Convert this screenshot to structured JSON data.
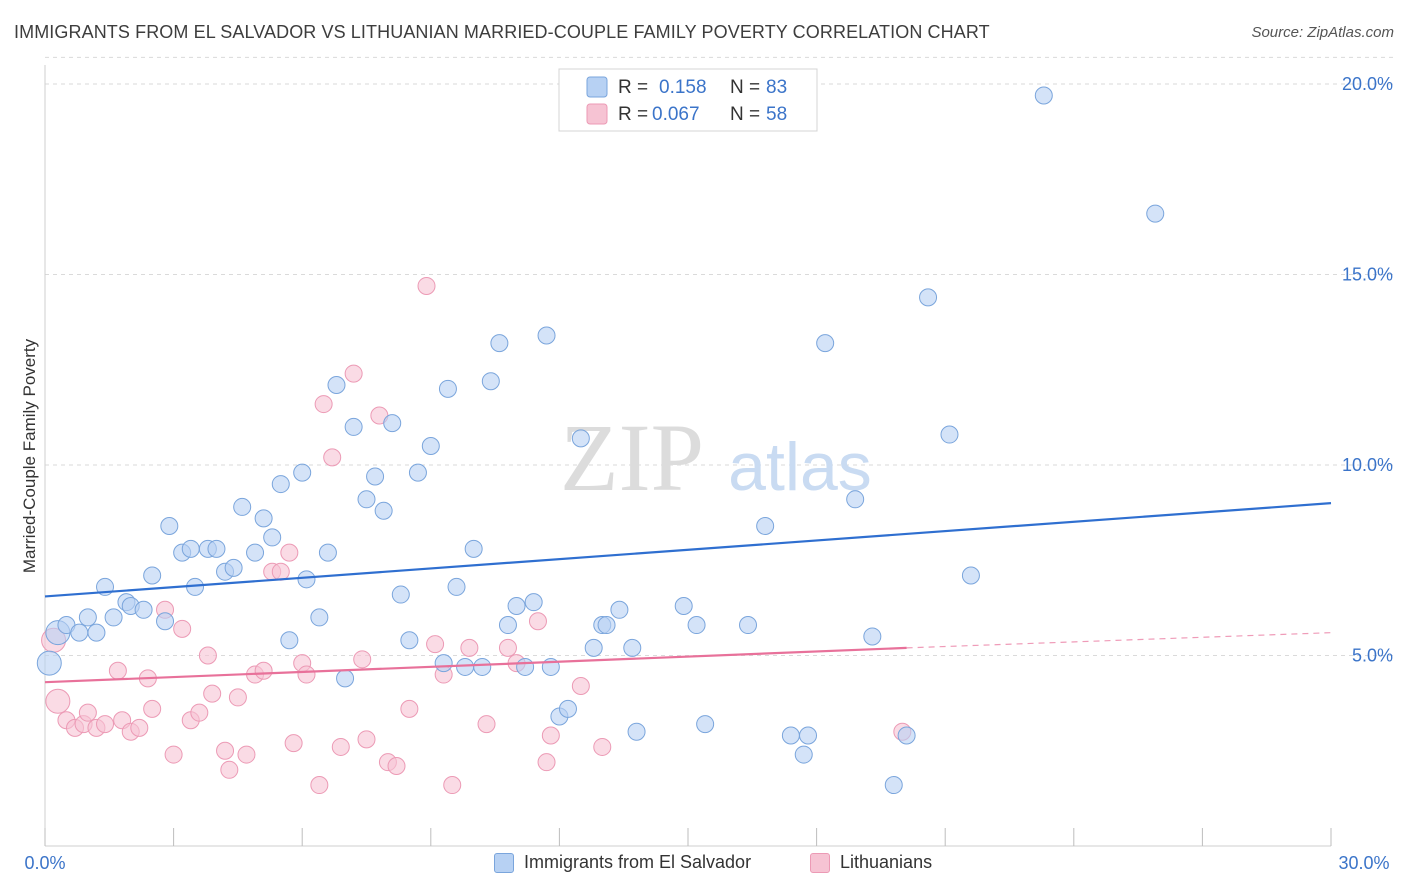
{
  "header": {
    "title": "IMMIGRANTS FROM EL SALVADOR VS LITHUANIAN MARRIED-COUPLE FAMILY POVERTY CORRELATION CHART",
    "source": "Source: ZipAtlas.com"
  },
  "watermark": {
    "zip": "ZIP",
    "atlas": "atlas"
  },
  "colors": {
    "blue_fill": "#b7d1f3",
    "blue_stroke": "#7aa5dc",
    "blue_line": "#2f6fd0",
    "pink_fill": "#f6c3d3",
    "pink_stroke": "#ec9ab5",
    "pink_line": "#e8719a",
    "grid": "#d9d9d9",
    "tick_text": "#3b74c9"
  },
  "legend_top": {
    "rows": [
      {
        "r_label": "R =",
        "r_value": "0.158",
        "n_label": "N =",
        "n_value": "83"
      },
      {
        "r_label": "R =",
        "r_value": "0.067",
        "n_label": "N =",
        "n_value": "58"
      }
    ]
  },
  "chart_data": {
    "type": "scatter",
    "title": "IMMIGRANTS FROM EL SALVADOR VS LITHUANIAN MARRIED-COUPLE FAMILY POVERTY CORRELATION CHART",
    "ylabel": "Married-Couple Family Poverty",
    "xlabel": "",
    "xlim": [
      0,
      30
    ],
    "ylim": [
      0,
      20.5
    ],
    "x_tick_labels": [
      "0.0%",
      "30.0%"
    ],
    "y_ticks": [
      5,
      10,
      15,
      20
    ],
    "y_tick_labels": [
      "5.0%",
      "10.0%",
      "15.0%",
      "20.0%"
    ],
    "grid": "horizontal dashed",
    "legend_placement": "top-center",
    "series": [
      {
        "name": "Immigrants from El Salvador",
        "color": "#b7d1f3",
        "trend": {
          "x": [
            0,
            30
          ],
          "y": [
            6.55,
            9.0
          ],
          "dashed_after": null
        },
        "points": [
          [
            0.1,
            4.8
          ],
          [
            0.3,
            5.6
          ],
          [
            0.5,
            5.8
          ],
          [
            0.8,
            5.6
          ],
          [
            1.0,
            6.0
          ],
          [
            1.2,
            5.6
          ],
          [
            1.4,
            6.8
          ],
          [
            1.6,
            6.0
          ],
          [
            1.9,
            6.4
          ],
          [
            2.0,
            6.3
          ],
          [
            2.3,
            6.2
          ],
          [
            2.5,
            7.1
          ],
          [
            2.8,
            5.9
          ],
          [
            2.9,
            8.4
          ],
          [
            3.2,
            7.7
          ],
          [
            3.4,
            7.8
          ],
          [
            3.5,
            6.8
          ],
          [
            3.8,
            7.8
          ],
          [
            4.0,
            7.8
          ],
          [
            4.2,
            7.2
          ],
          [
            4.4,
            7.3
          ],
          [
            4.6,
            8.9
          ],
          [
            4.9,
            7.7
          ],
          [
            5.1,
            8.6
          ],
          [
            5.3,
            8.1
          ],
          [
            5.5,
            9.5
          ],
          [
            5.7,
            5.4
          ],
          [
            6.0,
            9.8
          ],
          [
            6.1,
            7.0
          ],
          [
            6.4,
            6.0
          ],
          [
            6.6,
            7.7
          ],
          [
            7.0,
            4.4
          ],
          [
            6.8,
            12.1
          ],
          [
            7.2,
            11.0
          ],
          [
            7.5,
            9.1
          ],
          [
            7.7,
            9.7
          ],
          [
            7.9,
            8.8
          ],
          [
            8.1,
            11.1
          ],
          [
            8.3,
            6.6
          ],
          [
            8.5,
            5.4
          ],
          [
            8.7,
            9.8
          ],
          [
            9.0,
            10.5
          ],
          [
            9.3,
            4.8
          ],
          [
            9.4,
            12.0
          ],
          [
            9.6,
            6.8
          ],
          [
            9.8,
            4.7
          ],
          [
            10.0,
            7.8
          ],
          [
            10.2,
            4.7
          ],
          [
            10.4,
            12.2
          ],
          [
            10.6,
            13.2
          ],
          [
            10.8,
            5.8
          ],
          [
            11.0,
            6.3
          ],
          [
            11.2,
            4.7
          ],
          [
            11.4,
            6.4
          ],
          [
            11.7,
            13.4
          ],
          [
            11.8,
            4.7
          ],
          [
            12.0,
            3.4
          ],
          [
            12.2,
            3.6
          ],
          [
            12.5,
            10.7
          ],
          [
            12.8,
            5.2
          ],
          [
            13.0,
            5.8
          ],
          [
            13.1,
            5.8
          ],
          [
            13.4,
            6.2
          ],
          [
            13.7,
            5.2
          ],
          [
            13.8,
            3.0
          ],
          [
            14.9,
            6.3
          ],
          [
            15.2,
            5.8
          ],
          [
            15.4,
            3.2
          ],
          [
            16.4,
            5.8
          ],
          [
            16.8,
            8.4
          ],
          [
            17.4,
            2.9
          ],
          [
            17.7,
            2.4
          ],
          [
            17.8,
            2.9
          ],
          [
            18.2,
            13.2
          ],
          [
            18.9,
            9.1
          ],
          [
            19.3,
            5.5
          ],
          [
            19.8,
            1.6
          ],
          [
            20.1,
            2.9
          ],
          [
            20.6,
            14.4
          ],
          [
            21.1,
            10.8
          ],
          [
            21.6,
            7.1
          ],
          [
            23.3,
            19.7
          ],
          [
            25.9,
            16.6
          ]
        ]
      },
      {
        "name": "Lithuanians",
        "color": "#f6c3d3",
        "trend": {
          "x": [
            0,
            20.1
          ],
          "y": [
            4.3,
            5.2
          ],
          "dashed_after": [
            20.1,
            30,
            5.2,
            5.6
          ]
        },
        "points": [
          [
            0.2,
            5.4
          ],
          [
            0.3,
            3.8
          ],
          [
            0.5,
            3.3
          ],
          [
            0.7,
            3.1
          ],
          [
            0.9,
            3.2
          ],
          [
            1.0,
            3.5
          ],
          [
            1.2,
            3.1
          ],
          [
            1.4,
            3.2
          ],
          [
            1.7,
            4.6
          ],
          [
            1.8,
            3.3
          ],
          [
            2.0,
            3.0
          ],
          [
            2.2,
            3.1
          ],
          [
            2.4,
            4.4
          ],
          [
            2.5,
            3.6
          ],
          [
            2.8,
            6.2
          ],
          [
            3.0,
            2.4
          ],
          [
            3.2,
            5.7
          ],
          [
            3.4,
            3.3
          ],
          [
            3.6,
            3.5
          ],
          [
            3.8,
            5.0
          ],
          [
            3.9,
            4.0
          ],
          [
            4.2,
            2.5
          ],
          [
            4.3,
            2.0
          ],
          [
            4.5,
            3.9
          ],
          [
            4.7,
            2.4
          ],
          [
            4.9,
            4.5
          ],
          [
            5.1,
            4.6
          ],
          [
            5.3,
            7.2
          ],
          [
            5.5,
            7.2
          ],
          [
            5.7,
            7.7
          ],
          [
            5.8,
            2.7
          ],
          [
            6.0,
            4.8
          ],
          [
            6.1,
            4.5
          ],
          [
            6.4,
            1.6
          ],
          [
            6.5,
            11.6
          ],
          [
            6.7,
            10.2
          ],
          [
            6.9,
            2.6
          ],
          [
            7.2,
            12.4
          ],
          [
            7.4,
            4.9
          ],
          [
            7.5,
            2.8
          ],
          [
            7.8,
            11.3
          ],
          [
            8.0,
            2.2
          ],
          [
            8.2,
            2.1
          ],
          [
            8.5,
            3.6
          ],
          [
            8.9,
            14.7
          ],
          [
            9.1,
            5.3
          ],
          [
            9.3,
            4.5
          ],
          [
            9.5,
            1.6
          ],
          [
            9.9,
            5.2
          ],
          [
            10.3,
            3.2
          ],
          [
            10.8,
            5.2
          ],
          [
            11.0,
            4.8
          ],
          [
            11.5,
            5.9
          ],
          [
            11.7,
            2.2
          ],
          [
            11.8,
            2.9
          ],
          [
            12.5,
            4.2
          ],
          [
            13.0,
            2.6
          ],
          [
            20.0,
            3.0
          ]
        ]
      }
    ]
  },
  "legend_bottom": {
    "items": [
      {
        "label": "Immigrants from El Salvador"
      },
      {
        "label": "Lithuanians"
      }
    ]
  }
}
